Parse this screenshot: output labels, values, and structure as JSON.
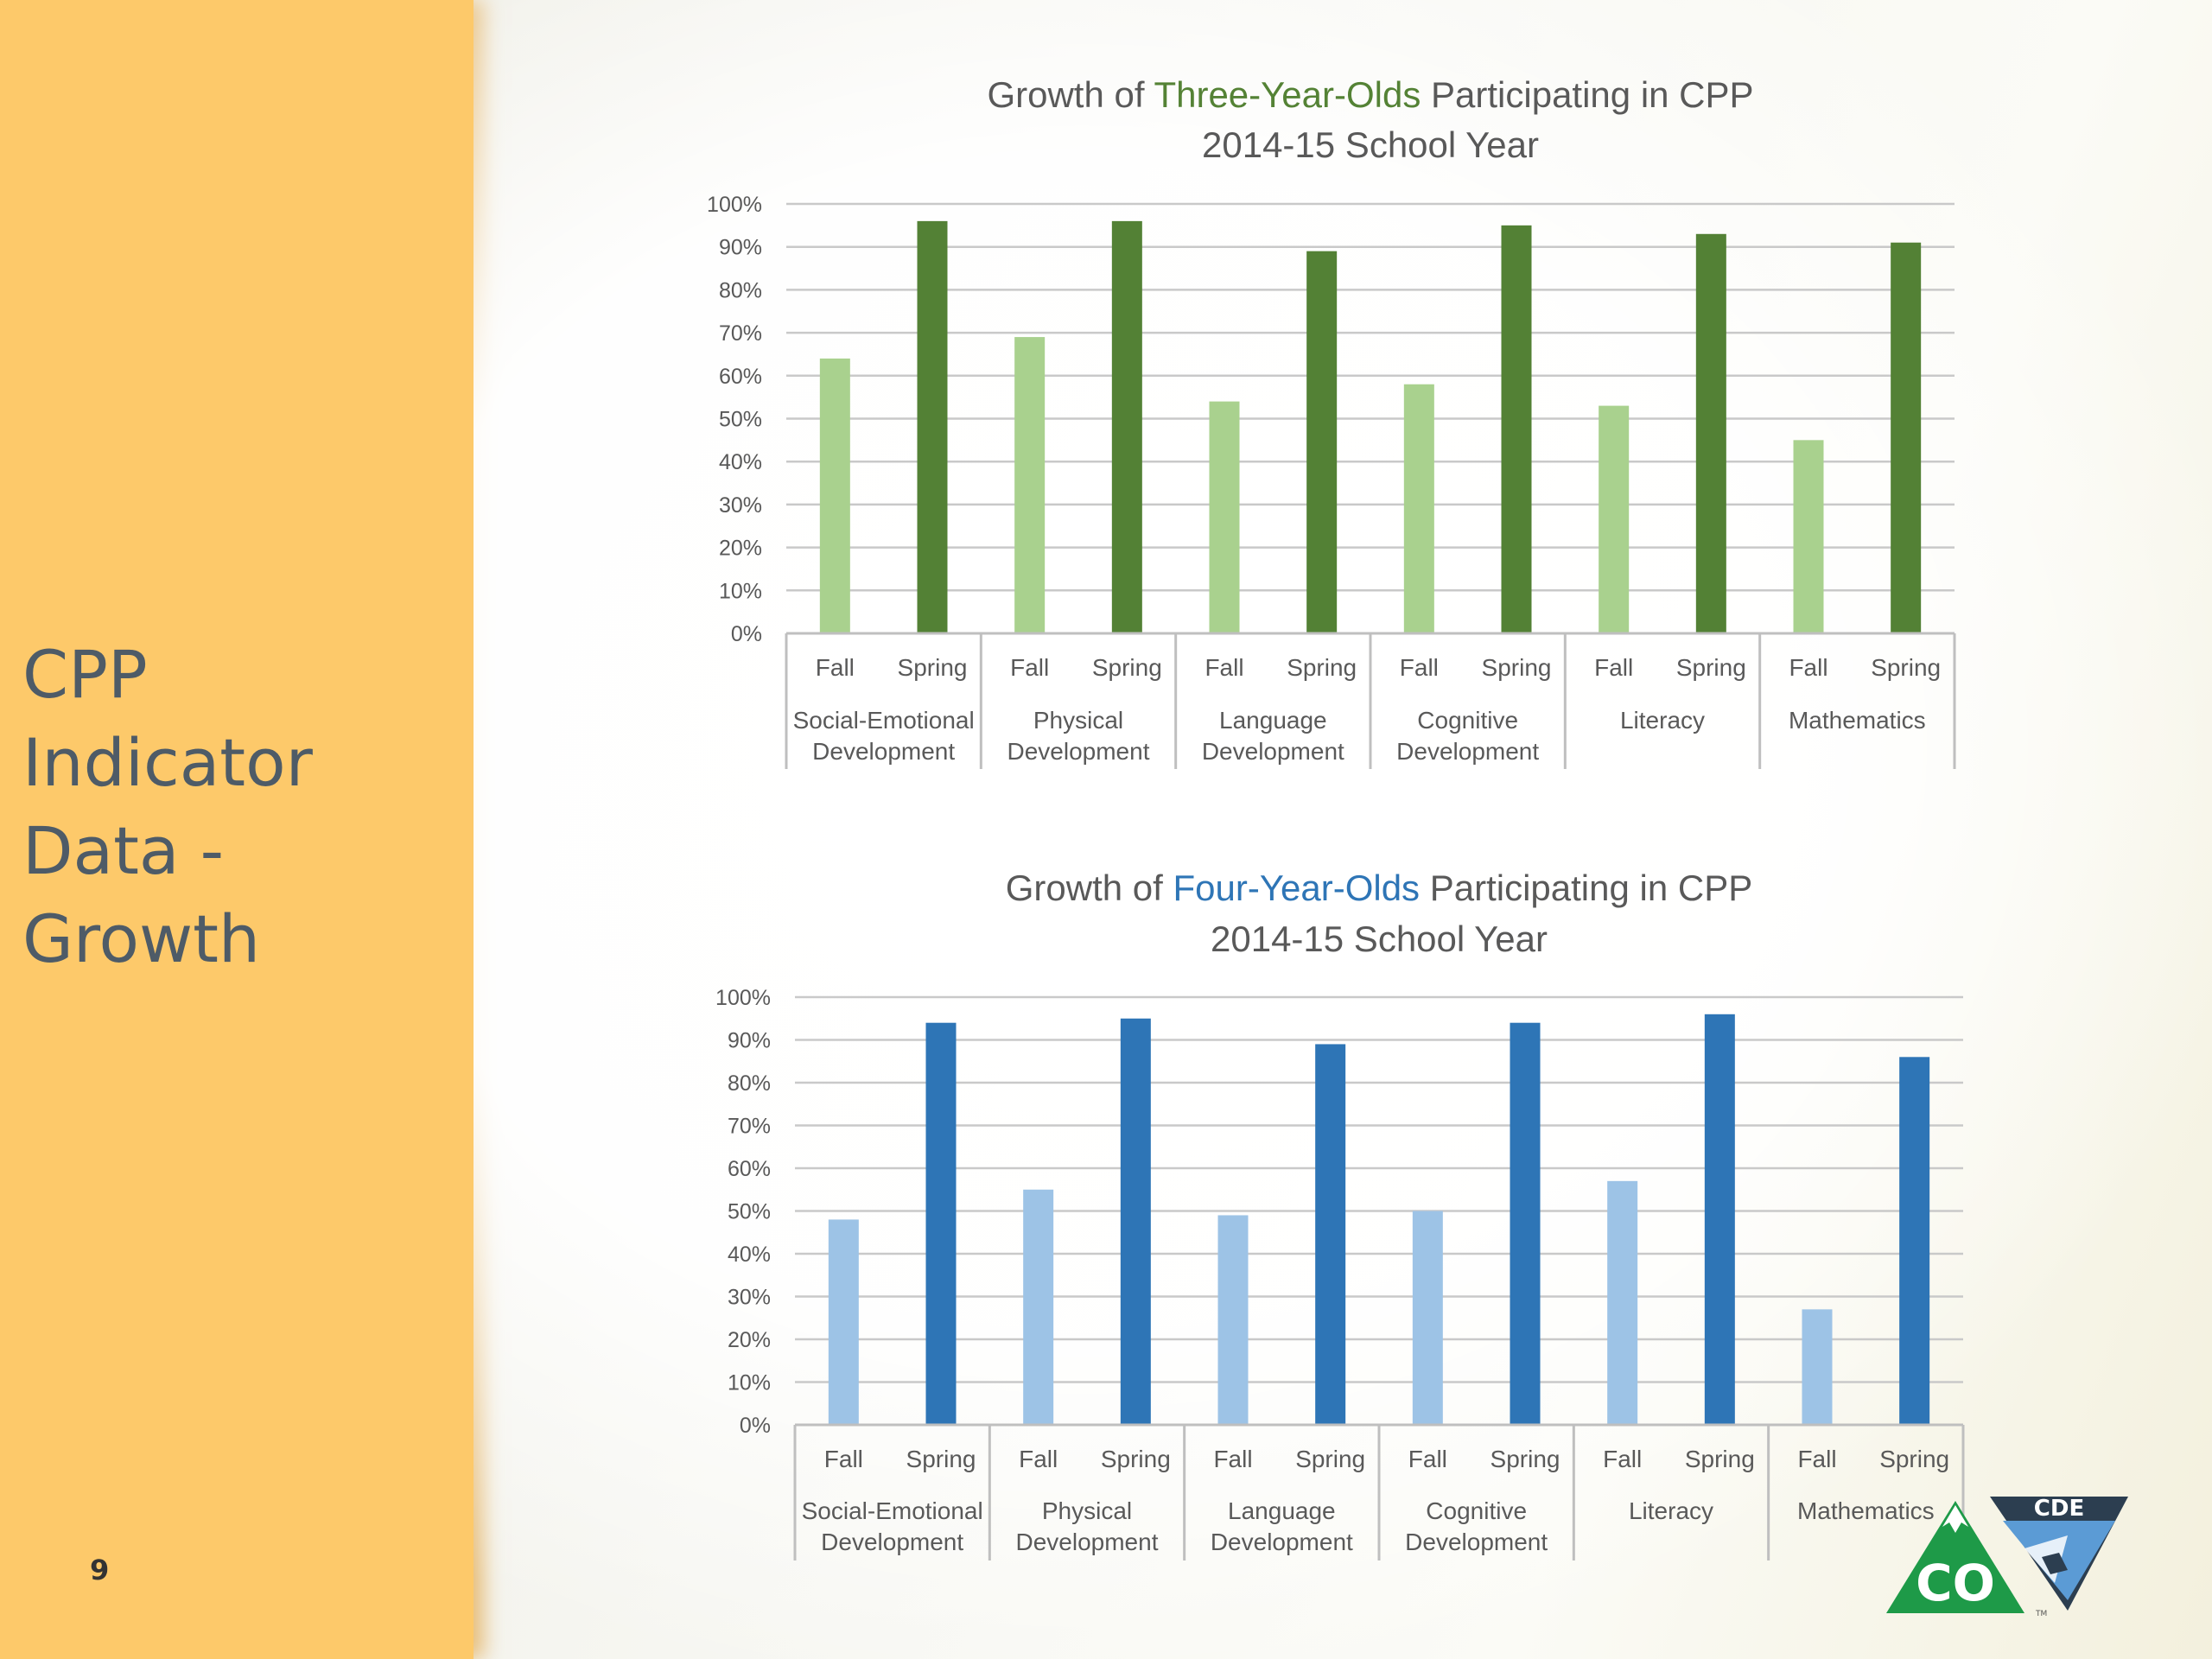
{
  "slide": {
    "section_title_lines": [
      "CPP Indicator",
      "Data -",
      "Growth"
    ],
    "page_number": "9"
  },
  "logos": {
    "co_text": "CO",
    "cde_text": "CDE",
    "tm_mark": "TM"
  },
  "chart_data": [
    {
      "type": "bar",
      "title_parts": [
        "Growth of ",
        "Three-Year-Olds",
        " Participating in CPP"
      ],
      "title_highlight_color": "#548235",
      "subtitle": "2014-15 School Year",
      "categories": [
        "Social-Emotional Development",
        "Physical Development",
        "Language Development",
        "Cognitive Development",
        "Literacy",
        "Mathematics"
      ],
      "category_label_lines": [
        [
          "Social-Emotional",
          "Development"
        ],
        [
          "Physical",
          "Development"
        ],
        [
          "Language",
          "Development"
        ],
        [
          "Cognitive",
          "Development"
        ],
        [
          "Literacy"
        ],
        [
          "Mathematics"
        ]
      ],
      "sub_labels": [
        "Fall",
        "Spring"
      ],
      "series": [
        {
          "name": "Fall",
          "color": "#a9d18e",
          "values": [
            64,
            69,
            54,
            58,
            53,
            45
          ]
        },
        {
          "name": "Spring",
          "color": "#538135",
          "values": [
            96,
            96,
            89,
            95,
            93,
            91
          ]
        }
      ],
      "ylim": [
        0,
        100
      ],
      "yticks": [
        "0%",
        "10%",
        "20%",
        "30%",
        "40%",
        "50%",
        "60%",
        "70%",
        "80%",
        "90%",
        "100%"
      ],
      "grid": true
    },
    {
      "type": "bar",
      "title_parts": [
        "Growth of ",
        "Four-Year-Olds",
        " Participating in CPP"
      ],
      "title_highlight_color": "#2e75b6",
      "subtitle": "2014-15 School Year",
      "categories": [
        "Social-Emotional Development",
        "Physical Development",
        "Language Development",
        "Cognitive Development",
        "Literacy",
        "Mathematics"
      ],
      "category_label_lines": [
        [
          "Social-Emotional",
          "Development"
        ],
        [
          "Physical",
          "Development"
        ],
        [
          "Language",
          "Development"
        ],
        [
          "Cognitive",
          "Development"
        ],
        [
          "Literacy"
        ],
        [
          "Mathematics"
        ]
      ],
      "sub_labels": [
        "Fall",
        "Spring"
      ],
      "series": [
        {
          "name": "Fall",
          "color": "#9dc3e6",
          "values": [
            48,
            55,
            49,
            50,
            57,
            27
          ]
        },
        {
          "name": "Spring",
          "color": "#2e75b6",
          "values": [
            94,
            95,
            89,
            94,
            96,
            86
          ]
        }
      ],
      "ylim": [
        0,
        100
      ],
      "yticks": [
        "0%",
        "10%",
        "20%",
        "30%",
        "40%",
        "50%",
        "60%",
        "70%",
        "80%",
        "90%",
        "100%"
      ],
      "grid": true
    }
  ]
}
